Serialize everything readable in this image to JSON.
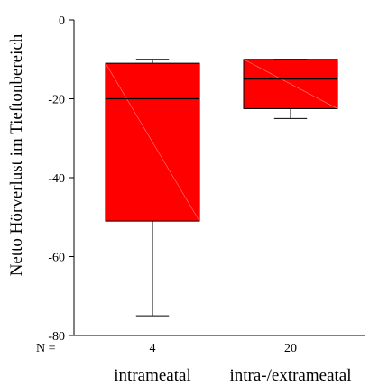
{
  "chart_data": {
    "type": "boxplot",
    "ylabel": "Netto Hörverlust im Tieftonbereich",
    "ylim": [
      -80,
      0
    ],
    "yticks": [
      {
        "value": 0,
        "label": "0"
      },
      {
        "value": -20,
        "label": "-20"
      },
      {
        "value": -40,
        "label": "-40"
      },
      {
        "value": -60,
        "label": "-60"
      },
      {
        "value": -80,
        "label": "-80"
      }
    ],
    "n_label": "N =",
    "box_color": "#ff0000",
    "categories": [
      {
        "name": "intrameatal",
        "n": "4",
        "whisker_low": -75,
        "q1": -51,
        "median": -20,
        "q3": -11,
        "whisker_high": -10
      },
      {
        "name": "intra-/extrameatal",
        "n": "20",
        "whisker_low": -25,
        "q1": -22.5,
        "median": -15,
        "q3": -10,
        "whisker_high": -10
      }
    ]
  }
}
